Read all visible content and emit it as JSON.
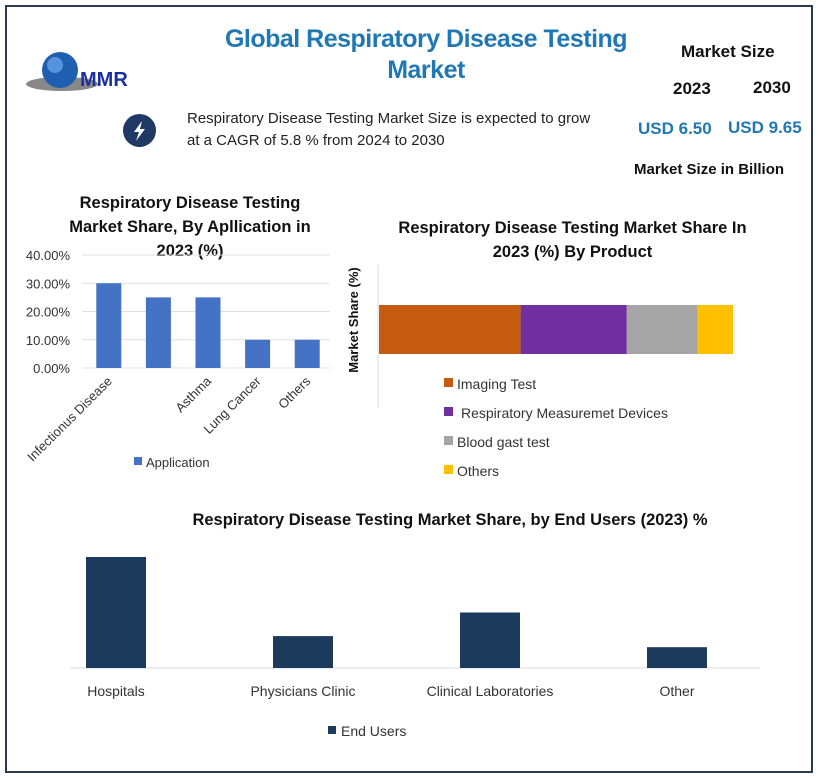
{
  "header": {
    "title": "Global Respiratory Disease Testing Market",
    "logo_text": "MMR",
    "cagr_text_line1": "Respiratory Disease Testing Market Size is expected to grow",
    "cagr_text_line2": "at a CAGR of 5.8 % from 2024 to 2030",
    "icon": "lightning-bolt-icon",
    "market_size_label": "Market Size",
    "year1": "2023",
    "year2": "2030",
    "value1": "USD 6.50",
    "value2": "USD 9.65",
    "unit_label": "Market Size in Billion"
  },
  "chart_data": [
    {
      "type": "bar",
      "title": "Respiratory Disease Testing Market Share, By Apllication in 2023 (%)",
      "categories": [
        "Infectionus Disease",
        "",
        "Asthma",
        "Lung Cancer",
        "Others"
      ],
      "series": [
        {
          "name": "Application",
          "values": [
            30,
            25,
            25,
            10,
            10
          ]
        }
      ],
      "yticks": [
        "0.00%",
        "10.00%",
        "20.00%",
        "30.00%",
        "40.00%"
      ],
      "ylim": [
        0,
        40
      ],
      "grid": true,
      "legend": "bottom",
      "color": "#4472c4"
    },
    {
      "type": "bar",
      "stacked": true,
      "orientation": "horizontal",
      "title": "Respiratory Disease Testing Market Share In 2023 (%) By Product",
      "ylabel": "Market Share (%)",
      "series": [
        {
          "name": "Imaging Test",
          "values": [
            40
          ],
          "color": "#c55a11"
        },
        {
          "name": "Respiratory Measuremet Devices",
          "values": [
            30
          ],
          "color": "#7030a0"
        },
        {
          "name": "Blood gast test",
          "values": [
            20
          ],
          "color": "#a5a5a5"
        },
        {
          "name": "Others",
          "values": [
            10
          ],
          "color": "#ffc000"
        }
      ],
      "legend": "bottom"
    },
    {
      "type": "bar",
      "title": "Respiratory Disease Testing  Market Share, by End Users  (2023) %",
      "categories": [
        "Hospitals",
        "Physicians Clinic",
        "Clinical Laboratories",
        "Other"
      ],
      "series": [
        {
          "name": "End Users",
          "values": [
            40,
            11.5,
            20,
            7.5
          ]
        }
      ],
      "legend": "bottom",
      "color": "#1b3a5c"
    }
  ]
}
